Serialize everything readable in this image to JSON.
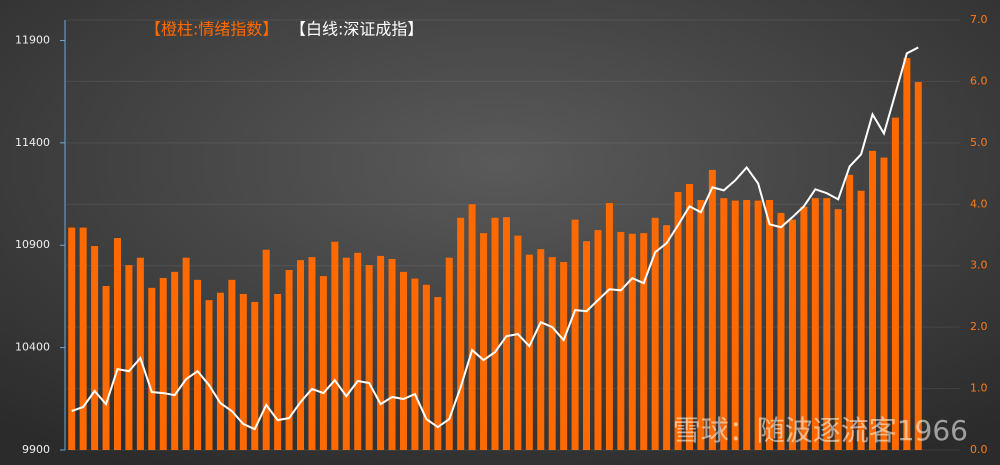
{
  "chart_data": {
    "type": "bar_line",
    "categories": [
      null,
      null,
      null,
      null,
      null,
      null,
      null,
      null,
      null,
      null,
      null,
      null,
      null,
      null,
      null,
      null,
      null,
      null,
      null,
      null,
      null,
      null,
      null,
      null,
      null,
      null,
      null,
      null,
      null,
      null,
      null,
      null,
      null,
      null,
      null,
      null,
      null,
      null,
      null,
      null,
      null,
      null,
      null,
      null,
      null,
      null,
      null,
      null,
      null,
      null,
      null,
      null,
      null,
      null,
      null,
      null,
      null,
      null,
      null,
      null,
      null,
      null,
      null,
      null,
      null,
      null,
      null,
      null,
      null,
      null,
      null,
      null,
      null,
      null,
      null
    ],
    "series": [
      {
        "name": "【橙柱:情绪指数】",
        "color": "#ff6a00",
        "axis": "y2",
        "type": "bar",
        "values": [
          3.62,
          3.62,
          3.32,
          2.67,
          3.45,
          3.01,
          3.13,
          2.64,
          2.8,
          2.9,
          3.13,
          2.77,
          2.44,
          2.56,
          2.77,
          2.54,
          2.41,
          3.26,
          2.54,
          2.93,
          3.09,
          3.14,
          2.83,
          3.39,
          3.13,
          3.21,
          3.01,
          3.16,
          3.11,
          2.9,
          2.79,
          2.69,
          2.49,
          3.13,
          3.78,
          4.0,
          3.53,
          3.78,
          3.79,
          3.49,
          3.18,
          3.27,
          3.14,
          3.06,
          3.75,
          3.4,
          3.58,
          4.02,
          3.55,
          3.52,
          3.53,
          3.78,
          3.66,
          4.2,
          4.33,
          4.07,
          4.56,
          4.1,
          4.06,
          4.07,
          4.06,
          4.07,
          3.86,
          3.75,
          3.96,
          4.1,
          4.1,
          3.92,
          4.48,
          4.22,
          4.87,
          4.76,
          5.41,
          6.38,
          5.99
        ]
      },
      {
        "name": "【白线:深证成指】",
        "color": "#ffffff",
        "axis": "y",
        "type": "line",
        "values": [
          10090,
          10110,
          10188,
          10124,
          10295,
          10285,
          10349,
          10183,
          10178,
          10168,
          10246,
          10285,
          10217,
          10129,
          10090,
          10027,
          10002,
          10120,
          10046,
          10056,
          10134,
          10198,
          10178,
          10241,
          10163,
          10237,
          10227,
          10124,
          10159,
          10149,
          10173,
          10051,
          10012,
          10051,
          10207,
          10388,
          10339,
          10378,
          10456,
          10466,
          10407,
          10524,
          10500,
          10437,
          10583,
          10578,
          10632,
          10685,
          10680,
          10739,
          10715,
          10866,
          10910,
          10998,
          11090,
          11061,
          11183,
          11168,
          11217,
          11280,
          11202,
          11002,
          10988,
          11037,
          11090,
          11173,
          11154,
          11124,
          11285,
          11344,
          11539,
          11446,
          11641,
          11837,
          11866
        ]
      }
    ],
    "ylim": [
      9900,
      12000
    ],
    "yticks": [
      9900,
      10400,
      10900,
      11400,
      11900
    ],
    "y2lim": [
      0,
      7
    ],
    "y2ticks": [
      {
        "value": 0,
        "label": "0.0"
      },
      {
        "value": 1,
        "label": "1.0"
      },
      {
        "value": 2,
        "label": "2.0"
      },
      {
        "value": 3,
        "label": "3.0"
      },
      {
        "value": 4,
        "label": "4.0"
      },
      {
        "value": 5,
        "label": "5.0"
      },
      {
        "value": 6,
        "label": "6.0"
      },
      {
        "value": 7,
        "label": "7.0"
      }
    ],
    "grid": true,
    "watermark": "雪球：随波逐流客1966"
  }
}
